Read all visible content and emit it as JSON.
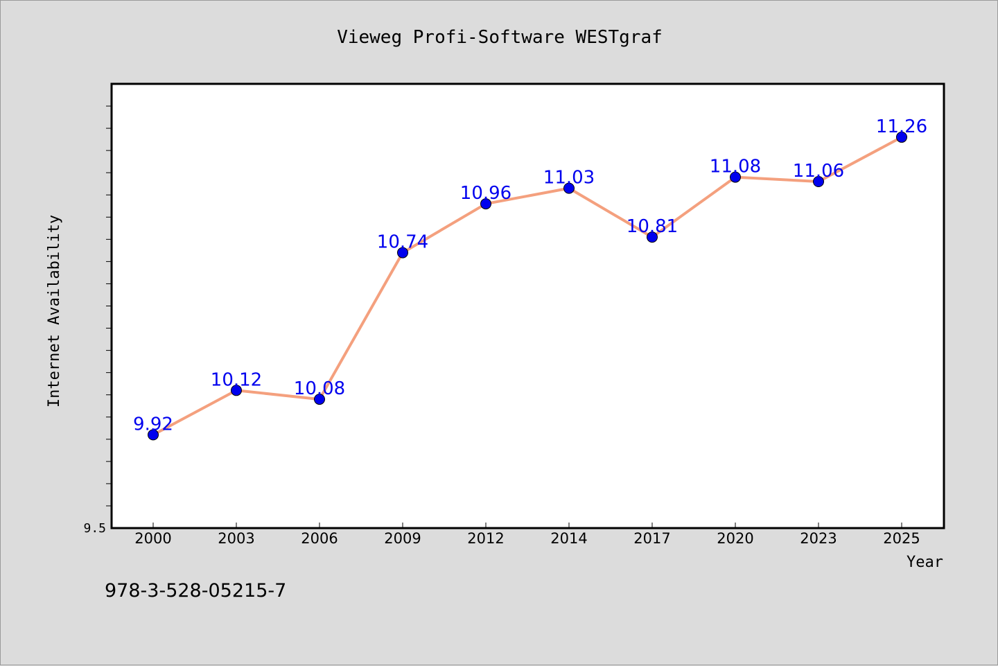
{
  "footer": {
    "code": "978-3-528-05215-7"
  },
  "chart_data": {
    "type": "line",
    "title": "Vieweg Profi-Software WESTgraf",
    "xlabel": "Year",
    "ylabel": "Internet Availability",
    "categories": [
      "2000",
      "2003",
      "2006",
      "2009",
      "2012",
      "2014",
      "2017",
      "2020",
      "2023",
      "2025"
    ],
    "series": [
      {
        "values": [
          9.92,
          10.12,
          10.08,
          10.74,
          10.96,
          11.03,
          10.81,
          11.08,
          11.06,
          11.26
        ]
      }
    ],
    "data_labels": [
      "9.92",
      "10.12",
      "10.08",
      "10.74",
      "10.96",
      "11.03",
      "10.81",
      "11.08",
      "11.06",
      "11.26"
    ],
    "y_tick_label": "9.5",
    "ylim": [
      9.5,
      11.5
    ],
    "y_minor_step": 0.1,
    "grid": false,
    "colors": {
      "line": "#f4a07e",
      "marker": "#0000ee",
      "label": "#0000ee",
      "plot_bg": "#ffffff",
      "page_bg": "#dcdcdc"
    }
  }
}
